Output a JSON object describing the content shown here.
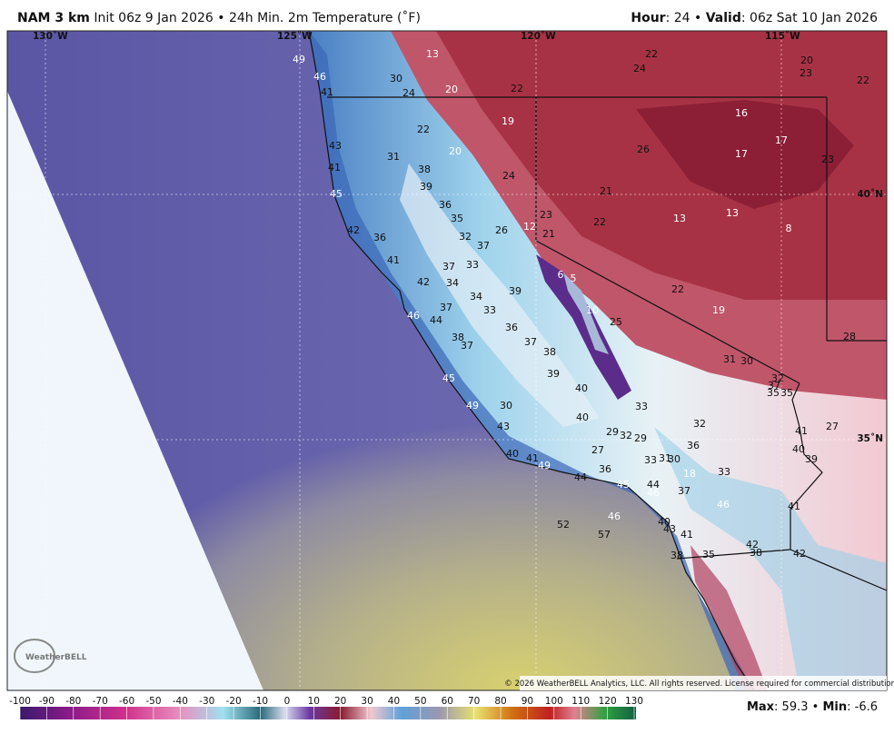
{
  "header": {
    "model": "NAM 3 km",
    "description": "Init 06z 9 Jan 2026 • 24h Min. 2m Temperature (˚F)",
    "hour_label": "Hour",
    "hour": ": 24 •",
    "valid_label": "Valid",
    "valid": ": 06z Sat 10 Jan 2026"
  },
  "map": {
    "grid_labels": [
      "130˚W",
      "125˚W",
      "120˚W",
      "115˚W",
      "40˚N",
      "35˚N"
    ],
    "station_values": [
      49,
      46,
      41,
      30,
      24,
      13,
      20,
      22,
      22,
      24,
      20,
      23,
      22,
      19,
      22,
      16,
      17,
      43,
      20,
      31,
      41,
      38,
      26,
      17,
      23,
      24,
      39,
      45,
      21,
      36,
      35,
      23,
      22,
      13,
      13,
      8,
      42,
      36,
      26,
      12,
      21,
      32,
      37,
      41,
      37,
      33,
      6,
      5,
      42,
      34,
      34,
      39,
      22,
      37,
      33,
      46,
      44,
      10,
      19,
      25,
      36,
      38,
      37,
      37,
      38,
      31,
      30,
      32,
      37,
      35,
      35,
      28,
      39,
      45,
      40,
      33,
      49,
      30,
      40,
      32,
      43,
      29,
      32,
      29,
      41,
      27,
      36,
      27,
      40,
      40,
      41,
      49,
      33,
      31,
      30,
      39,
      36,
      18,
      33,
      44,
      45,
      44,
      46,
      37,
      46,
      41,
      40,
      43,
      52,
      46,
      57,
      41,
      42,
      38,
      35,
      38,
      42
    ],
    "copyright": "© 2026 WeatherBELL Analytics, LLC. All rights reserved. License required for commercial distribution.",
    "logo": "WeatherBELL"
  },
  "colorbar": {
    "ticks": [
      -100,
      -90,
      -80,
      -70,
      -60,
      -50,
      -40,
      -30,
      -20,
      -10,
      0,
      10,
      20,
      30,
      40,
      50,
      60,
      70,
      80,
      90,
      100,
      110,
      120,
      130
    ]
  },
  "stats": {
    "max_label": "Max",
    "max": ": 59.3 •",
    "min_label": "Min",
    "min": ": -6.6"
  }
}
